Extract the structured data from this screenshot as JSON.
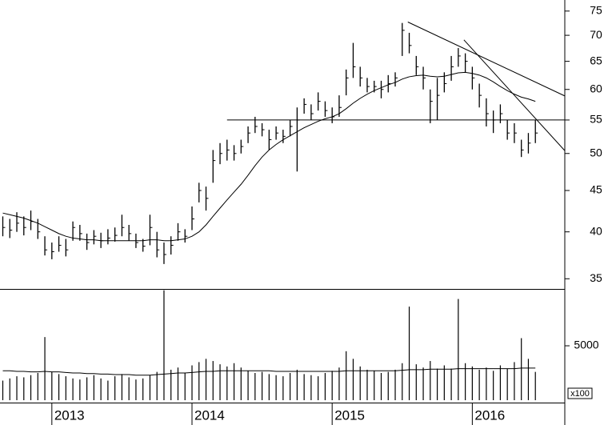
{
  "chart_data": {
    "type": "ohlc",
    "log_scale": true,
    "color": "#000000",
    "x": [
      2012.65,
      2012.7,
      2012.75,
      2012.8,
      2012.85,
      2012.9,
      2012.95,
      2013.0,
      2013.05,
      2013.1,
      2013.15,
      2013.2,
      2013.25,
      2013.3,
      2013.35,
      2013.4,
      2013.45,
      2013.5,
      2013.55,
      2013.6,
      2013.65,
      2013.7,
      2013.75,
      2013.8,
      2013.85,
      2013.9,
      2013.95,
      2014.0,
      2014.05,
      2014.1,
      2014.15,
      2014.2,
      2014.25,
      2014.3,
      2014.35,
      2014.4,
      2014.45,
      2014.5,
      2014.55,
      2014.6,
      2014.65,
      2014.7,
      2014.75,
      2014.8,
      2014.85,
      2014.9,
      2014.95,
      2015.0,
      2015.05,
      2015.1,
      2015.15,
      2015.2,
      2015.25,
      2015.3,
      2015.35,
      2015.4,
      2015.45,
      2015.5,
      2015.55,
      2015.6,
      2015.65,
      2015.7,
      2015.75,
      2015.8,
      2015.85,
      2015.9,
      2015.95,
      2016.0,
      2016.05,
      2016.1,
      2016.15,
      2016.2,
      2016.25,
      2016.3,
      2016.35,
      2016.4,
      2016.45
    ],
    "high": [
      41.8,
      41.5,
      42.3,
      41.8,
      42.5,
      41.5,
      39.5,
      38.8,
      39.5,
      39.2,
      41.2,
      40.8,
      39.8,
      40.2,
      39.9,
      40.3,
      40.5,
      42,
      40.8,
      39.8,
      39.2,
      42,
      40,
      38.8,
      39.5,
      41,
      40.3,
      43,
      46,
      45.5,
      50.5,
      51.5,
      52,
      51.2,
      52,
      54,
      55.5,
      54.5,
      53.5,
      54,
      53.5,
      55,
      57,
      58.5,
      57.5,
      59.5,
      58,
      57,
      59,
      63.5,
      68.5,
      64,
      62,
      61.5,
      61.5,
      62.5,
      63,
      72.5,
      70.5,
      66,
      64,
      60,
      62,
      63,
      66,
      67.5,
      66.5,
      64,
      61,
      58.5,
      56.5,
      57.5,
      55,
      54.5,
      52,
      53,
      55
    ],
    "low": [
      39.5,
      39.3,
      40,
      39.6,
      40.2,
      39.2,
      37.4,
      37,
      37.8,
      37.3,
      39,
      39,
      38,
      38.6,
      38.2,
      38.6,
      38.9,
      39.5,
      39,
      38.2,
      37.8,
      38.5,
      37.2,
      36.5,
      37.5,
      39,
      38.8,
      40.2,
      43.5,
      42.5,
      46,
      48.5,
      49,
      49,
      50,
      51.5,
      53,
      52.5,
      50.5,
      52,
      51.5,
      52.5,
      47.5,
      56,
      55,
      56.5,
      55.5,
      54.5,
      55.5,
      59,
      62,
      60.5,
      59.5,
      59.5,
      58.5,
      59.5,
      60.5,
      66,
      66.5,
      62.5,
      60,
      54.5,
      55,
      59.5,
      61.5,
      64,
      63,
      60,
      57,
      54,
      53,
      54.5,
      52,
      51.5,
      49.5,
      50,
      51.5
    ],
    "close": [
      40.5,
      40.2,
      41,
      40.5,
      41.2,
      40,
      38,
      37.8,
      38.5,
      38,
      40.5,
      39.8,
      38.8,
      39.5,
      39,
      39.3,
      39.6,
      40.5,
      39.8,
      38.8,
      38.4,
      40.5,
      38,
      37.5,
      38.5,
      40,
      39.5,
      41.5,
      45,
      44,
      49,
      50,
      50.5,
      50,
      51,
      53,
      54,
      53.5,
      52,
      53,
      52.5,
      54,
      55,
      57.5,
      56,
      58,
      56.5,
      55.5,
      57,
      62,
      64,
      62,
      60.5,
      60.5,
      60,
      61,
      62,
      71,
      68,
      64,
      62,
      58,
      59,
      61,
      64,
      66,
      65,
      62,
      59,
      56,
      55,
      56,
      53,
      53,
      50.5,
      51.5,
      53
    ],
    "ma": [
      42.2,
      42,
      41.8,
      41.6,
      41.3,
      41,
      40.6,
      40.2,
      39.8,
      39.5,
      39.3,
      39.2,
      39.1,
      39.1,
      39,
      39,
      39,
      39,
      39,
      39,
      39,
      39.1,
      39.1,
      39,
      39,
      39.1,
      39.2,
      39.5,
      40,
      40.8,
      41.8,
      42.8,
      43.8,
      44.8,
      45.8,
      47,
      48.3,
      49.5,
      50.5,
      51.3,
      52,
      52.6,
      53.2,
      53.8,
      54.3,
      54.8,
      55.2,
      55.5,
      56,
      56.8,
      57.7,
      58.5,
      59.2,
      59.8,
      60.3,
      60.8,
      61.2,
      61.8,
      62.2,
      62.4,
      62.5,
      62.3,
      62.2,
      62.3,
      62.6,
      62.9,
      63,
      62.8,
      62.5,
      62,
      61.3,
      60.5,
      59.8,
      59.2,
      58.7,
      58.4,
      58
    ],
    "xlim": [
      2012.63,
      2016.66
    ],
    "xticks": [
      2013,
      2014,
      2015,
      2016
    ],
    "ylim": [
      34,
      77.4
    ],
    "yticks": [
      35,
      40,
      45,
      50,
      55,
      60,
      65,
      70,
      75
    ],
    "lines": [
      {
        "x": [
          2014.25,
          2016.66
        ],
        "values": [
          55,
          55
        ]
      },
      {
        "x": [
          2015.54,
          2016.66
        ],
        "values": [
          72.7,
          58.9
        ]
      },
      {
        "x": [
          2015.94,
          2016.66
        ],
        "values": [
          69.1,
          50.4
        ]
      }
    ],
    "volume": {
      "values": [
        1800,
        2000,
        2200,
        2100,
        2300,
        2500,
        5800,
        2600,
        2400,
        2200,
        2000,
        1900,
        2100,
        2300,
        2000,
        1800,
        2200,
        2400,
        2100,
        1900,
        2000,
        2300,
        2600,
        10100,
        2800,
        3000,
        2500,
        3200,
        3500,
        3800,
        3600,
        3300,
        3100,
        3400,
        3000,
        2700,
        2500,
        2600,
        2400,
        2300,
        2200,
        2500,
        2800,
        2400,
        2300,
        2200,
        2500,
        2700,
        3000,
        4500,
        3800,
        3100,
        2800,
        2700,
        2500,
        2600,
        2800,
        3400,
        8600,
        3300,
        3000,
        3600,
        2900,
        3200,
        2900,
        9300,
        3400,
        3100,
        2800,
        3000,
        2700,
        3200,
        2900,
        3500,
        5700,
        3800,
        2600
      ],
      "ma": [
        2700,
        2700,
        2650,
        2650,
        2600,
        2600,
        2650,
        2600,
        2600,
        2550,
        2500,
        2500,
        2450,
        2450,
        2400,
        2400,
        2350,
        2350,
        2350,
        2300,
        2300,
        2300,
        2350,
        2400,
        2450,
        2500,
        2500,
        2550,
        2600,
        2650,
        2650,
        2700,
        2700,
        2700,
        2700,
        2700,
        2700,
        2700,
        2700,
        2650,
        2650,
        2650,
        2650,
        2650,
        2650,
        2650,
        2650,
        2650,
        2650,
        2700,
        2700,
        2700,
        2700,
        2700,
        2700,
        2700,
        2700,
        2750,
        2800,
        2800,
        2800,
        2850,
        2850,
        2850,
        2850,
        2900,
        2900,
        2900,
        2900,
        2900,
        2900,
        2900,
        2900,
        2900,
        2950,
        2950,
        2950
      ],
      "ylim": [
        0,
        10150
      ],
      "yticks": [
        5000
      ],
      "unit": "x100"
    }
  }
}
